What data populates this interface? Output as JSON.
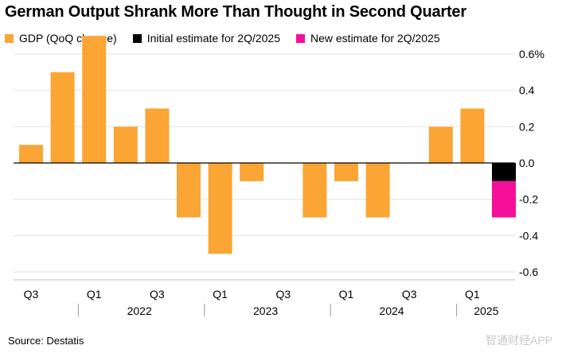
{
  "title": "German Output Shrank More Than Thought in Second Quarter",
  "legend": [
    {
      "label": "GDP (QoQ change)",
      "color": "#FBA534"
    },
    {
      "label": "Initial estimate for 2Q/2025",
      "color": "#000000"
    },
    {
      "label": "New estimate for 2Q/2025",
      "color": "#F5109A"
    }
  ],
  "source": "Source: Destatis",
  "watermark": "智通财经APP",
  "chart_data": {
    "type": "bar",
    "title": "German Output Shrank More Than Thought in Second Quarter",
    "xlabel": "",
    "ylabel": "",
    "ylim": [
      -0.6,
      0.6
    ],
    "yticks": [
      0.6,
      0.4,
      0.2,
      0.0,
      -0.2,
      -0.4,
      -0.6
    ],
    "ytick_labels": [
      "0.6%",
      "0.4",
      "0.2",
      "0.0",
      "-0.2",
      "-0.4",
      "-0.6"
    ],
    "grid": true,
    "categories": [
      "Q3 2021",
      "Q4 2021",
      "Q1 2022",
      "Q2 2022",
      "Q3 2022",
      "Q4 2022",
      "Q1 2023",
      "Q2 2023",
      "Q3 2023",
      "Q4 2023",
      "Q1 2024",
      "Q2 2024",
      "Q3 2024",
      "Q4 2024",
      "Q1 2025"
    ],
    "series": [
      {
        "name": "GDP (QoQ change)",
        "color": "#FBA534",
        "values": [
          0.1,
          0.5,
          0.7,
          0.2,
          0.3,
          -0.3,
          -0.5,
          -0.1,
          0.0,
          -0.3,
          -0.1,
          -0.3,
          0.0,
          0.2,
          0.3
        ]
      }
    ],
    "highlight": {
      "category": "Q2 2025",
      "initial": {
        "name": "Initial estimate for 2Q/2025",
        "value": -0.1,
        "color": "#000000"
      },
      "revised": {
        "name": "New estimate for 2Q/2025",
        "value": -0.3,
        "color": "#F5109A"
      }
    },
    "x_tick_labels": [
      {
        "label": "Q3",
        "index": 0
      },
      {
        "label": "Q1",
        "index": 2
      },
      {
        "label": "Q3",
        "index": 4
      },
      {
        "label": "Q1",
        "index": 6
      },
      {
        "label": "Q3",
        "index": 8
      },
      {
        "label": "Q1",
        "index": 10
      },
      {
        "label": "Q3",
        "index": 12
      },
      {
        "label": "Q1",
        "index": 14
      }
    ],
    "years": [
      {
        "label": "2022",
        "from": 2,
        "to": 5
      },
      {
        "label": "2023",
        "from": 6,
        "to": 9
      },
      {
        "label": "2024",
        "from": 10,
        "to": 13
      },
      {
        "label": "2025",
        "from": 14,
        "to": 15
      }
    ]
  }
}
